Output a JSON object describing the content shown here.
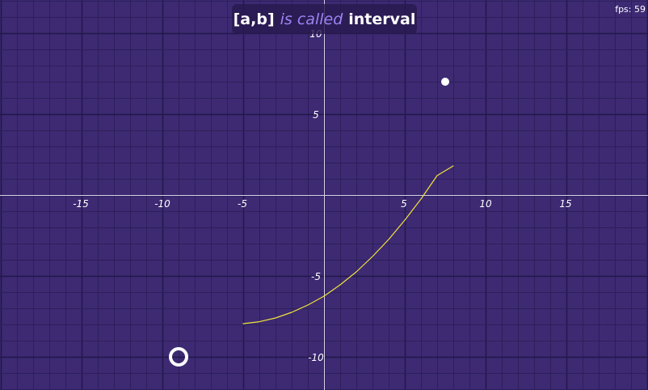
{
  "title": {
    "expression": "[a,b]",
    "phrase": "is called",
    "answer": "interval"
  },
  "fps": {
    "label": "fps:",
    "value": "59"
  },
  "graph": {
    "x_ticks": [
      "-15",
      "-10",
      "-5",
      "5",
      "10",
      "15"
    ],
    "y_ticks": [
      "10",
      "5",
      "-5",
      "-10"
    ],
    "curve_domain": [
      -5,
      8
    ],
    "curve_sample_points": [
      {
        "x": -5,
        "y": -7.95
      },
      {
        "x": -4,
        "y": -7.83
      },
      {
        "x": -3,
        "y": -7.6
      },
      {
        "x": -2,
        "y": -7.25
      },
      {
        "x": -1,
        "y": -6.8
      },
      {
        "x": 0,
        "y": -6.25
      },
      {
        "x": 1,
        "y": -5.55
      },
      {
        "x": 2,
        "y": -4.75
      },
      {
        "x": 3,
        "y": -3.8
      },
      {
        "x": 4,
        "y": -2.75
      },
      {
        "x": 5,
        "y": -1.55
      },
      {
        "x": 6,
        "y": -0.25
      },
      {
        "x": 7,
        "y": 1.2
      },
      {
        "x": 8,
        "y": 1.8
      }
    ],
    "filled_point": {
      "x": 7.5,
      "y": 7
    },
    "open_point": {
      "x": -9,
      "y": -10
    },
    "colors": {
      "background": "#3d2a73",
      "minor_grid": "#2d1f5a",
      "major_grid": "#221748",
      "axes": "#d8d3ea",
      "curve": "#f2e33a",
      "point": "#ffffff",
      "title_accent": "#9c84f2"
    }
  }
}
